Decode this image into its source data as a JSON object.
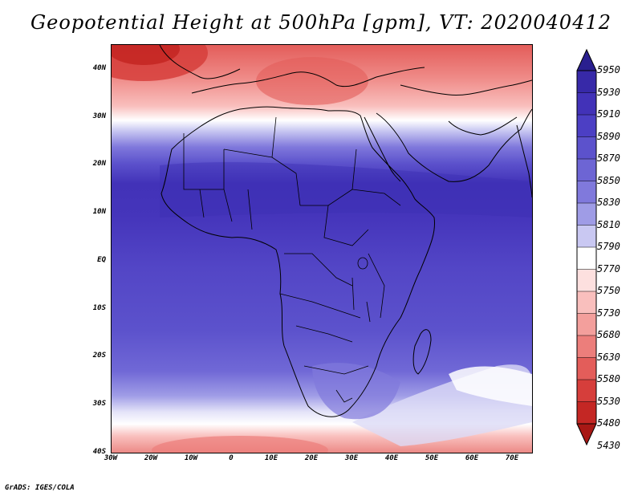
{
  "title": "Geopotential Height at 500hPa [gpm], VT: 2020040412",
  "credit": "GrADS: IGES/COLA",
  "axes": {
    "lat_labels": [
      "40N",
      "30N",
      "20N",
      "10N",
      "EQ",
      "10S",
      "20S",
      "30S",
      "40S"
    ],
    "lon_labels": [
      "30W",
      "20W",
      "10W",
      "0",
      "10E",
      "20E",
      "30E",
      "40E",
      "50E",
      "60E",
      "70E"
    ]
  },
  "colorbar": {
    "levels": [
      "5950",
      "5930",
      "5910",
      "5890",
      "5870",
      "5850",
      "5830",
      "5810",
      "5790",
      "5770",
      "5750",
      "5730",
      "5680",
      "5630",
      "5580",
      "5530",
      "5480",
      "5430"
    ],
    "colors": [
      "#2a1f8f",
      "#3729a8",
      "#4232b8",
      "#4c3fc4",
      "#5c52cc",
      "#6d65d4",
      "#8079dc",
      "#9f9ce6",
      "#c9c8f2",
      "#ffffff",
      "#fde0df",
      "#f9bfbd",
      "#f39f9c",
      "#ec7e7b",
      "#e35d5a",
      "#d63e3b",
      "#c42724",
      "#a81815"
    ]
  }
}
